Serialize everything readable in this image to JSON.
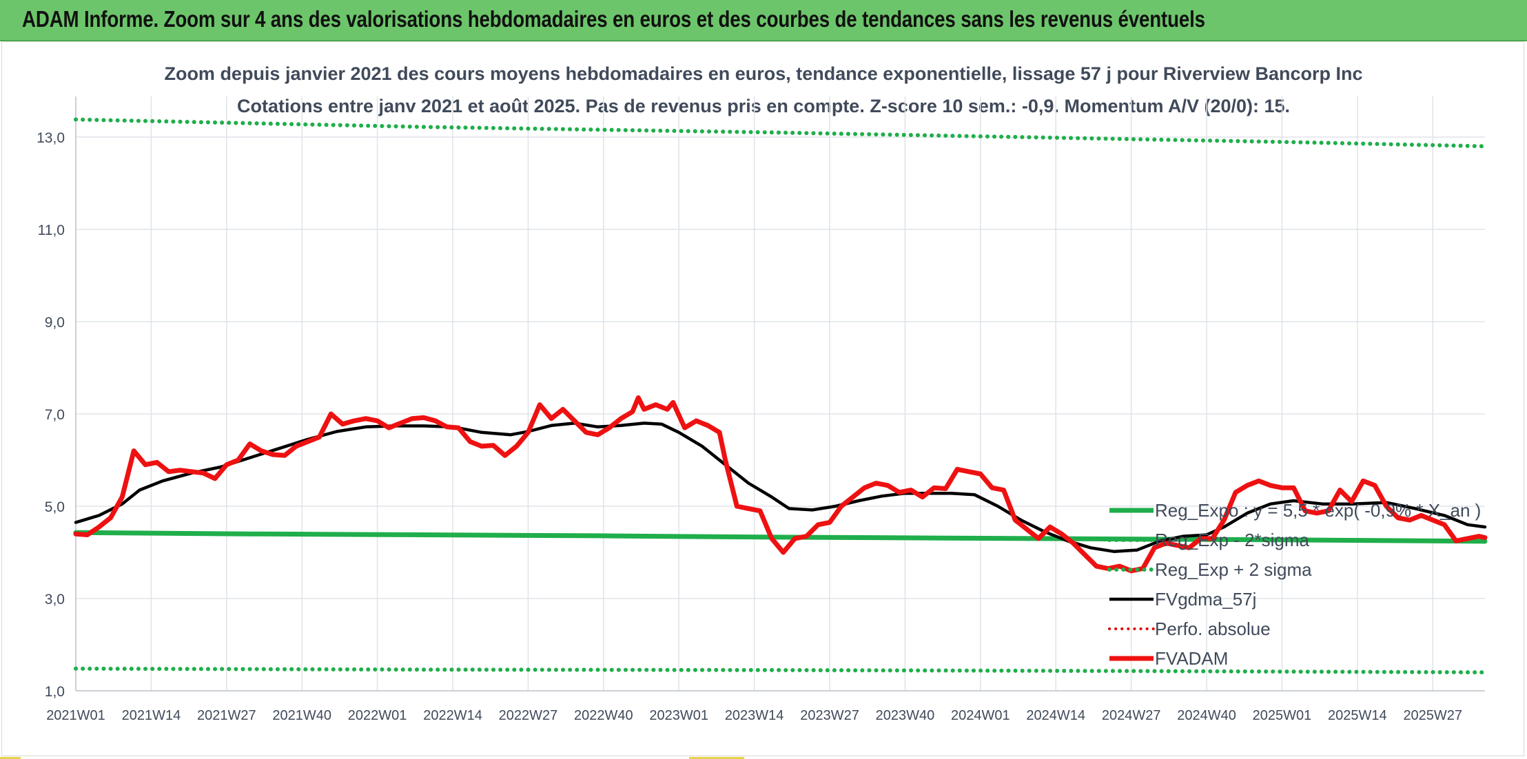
{
  "banner": {
    "title": "ADAM Informe. Zoom sur 4 ans des valorisations hebdomadaires en euros et des courbes de tendances sans les revenus éventuels"
  },
  "colors": {
    "banner_bg": "#6cc56a",
    "reg_expo": "#1fae4b",
    "sigma": "#1fae4b",
    "fvgdma": "#000000",
    "perfo": "#e00000",
    "fvadam": "#ee1111",
    "grid": "#dfe3e8",
    "text": "#404a5a"
  },
  "chart_data": {
    "type": "line",
    "title": "Zoom depuis janvier 2021 des cours moyens hebdomadaires en euros, tendance exponentielle, lissage 57 j pour Riverview Bancorp Inc",
    "subtitle": "Cotations entre janv 2021 et août 2025. Pas de revenus pris en compte. Z-score 10 sem.: -0,9. Momentum A/V (20/0): 15.",
    "xlabel": "",
    "ylabel": "",
    "ylim": [
      1.0,
      14.0
    ],
    "yticks": [
      "1,0",
      "3,0",
      "5,0",
      "7,0",
      "9,0",
      "11,0",
      "13,0"
    ],
    "x_tick_labels": [
      "2021W01",
      "2021W14",
      "2021W27",
      "2021W40",
      "2022W01",
      "2022W14",
      "2022W27",
      "2022W40",
      "2023W01",
      "2023W14",
      "2023W27",
      "2023W40",
      "2024W01",
      "2024W14",
      "2024W27",
      "2024W40",
      "2025W01",
      "2025W14",
      "2025W27"
    ],
    "x_tick_weeks": [
      0,
      13,
      26,
      39,
      52,
      65,
      78,
      91,
      104,
      117,
      130,
      143,
      156,
      169,
      182,
      195,
      208,
      221,
      234
    ],
    "x_range_weeks": [
      0,
      243
    ],
    "grid": true,
    "legend_position": "right-inside",
    "series": [
      {
        "name": "Reg_Expo : y = 5,5 * exp( -0,9% * X_an )",
        "style": "solid-thick",
        "points": [
          [
            0,
            4.43
          ],
          [
            30,
            4.4
          ],
          [
            60,
            4.38
          ],
          [
            90,
            4.36
          ],
          [
            120,
            4.33
          ],
          [
            150,
            4.31
          ],
          [
            180,
            4.29
          ],
          [
            210,
            4.27
          ],
          [
            243,
            4.24
          ]
        ]
      },
      {
        "name": "Reg_Exp - 2*sigma",
        "style": "dotted",
        "points": [
          [
            0,
            1.48
          ],
          [
            60,
            1.46
          ],
          [
            120,
            1.45
          ],
          [
            180,
            1.43
          ],
          [
            243,
            1.4
          ]
        ]
      },
      {
        "name": "Reg_Exp + 2 sigma",
        "style": "dotted",
        "points": [
          [
            0,
            13.38
          ],
          [
            30,
            13.3
          ],
          [
            60,
            13.22
          ],
          [
            90,
            13.16
          ],
          [
            120,
            13.1
          ],
          [
            150,
            13.03
          ],
          [
            180,
            12.96
          ],
          [
            210,
            12.89
          ],
          [
            243,
            12.8
          ]
        ]
      },
      {
        "name": "FVgdma_57j",
        "style": "solid",
        "points": [
          [
            0,
            4.65
          ],
          [
            4,
            4.8
          ],
          [
            8,
            5.05
          ],
          [
            11,
            5.35
          ],
          [
            15,
            5.55
          ],
          [
            20,
            5.72
          ],
          [
            25,
            5.85
          ],
          [
            30,
            6.05
          ],
          [
            35,
            6.25
          ],
          [
            40,
            6.45
          ],
          [
            45,
            6.62
          ],
          [
            50,
            6.72
          ],
          [
            55,
            6.74
          ],
          [
            60,
            6.74
          ],
          [
            65,
            6.72
          ],
          [
            70,
            6.6
          ],
          [
            75,
            6.55
          ],
          [
            78,
            6.62
          ],
          [
            82,
            6.75
          ],
          [
            86,
            6.8
          ],
          [
            90,
            6.72
          ],
          [
            94,
            6.75
          ],
          [
            98,
            6.8
          ],
          [
            101,
            6.78
          ],
          [
            104,
            6.6
          ],
          [
            108,
            6.3
          ],
          [
            112,
            5.9
          ],
          [
            116,
            5.5
          ],
          [
            120,
            5.2
          ],
          [
            123,
            4.95
          ],
          [
            127,
            4.92
          ],
          [
            131,
            5.0
          ],
          [
            135,
            5.12
          ],
          [
            139,
            5.22
          ],
          [
            143,
            5.28
          ],
          [
            147,
            5.28
          ],
          [
            151,
            5.28
          ],
          [
            155,
            5.25
          ],
          [
            159,
            5.0
          ],
          [
            163,
            4.7
          ],
          [
            167,
            4.45
          ],
          [
            171,
            4.25
          ],
          [
            175,
            4.1
          ],
          [
            179,
            4.02
          ],
          [
            183,
            4.05
          ],
          [
            187,
            4.25
          ],
          [
            191,
            4.35
          ],
          [
            195,
            4.38
          ],
          [
            198,
            4.55
          ],
          [
            202,
            4.85
          ],
          [
            206,
            5.05
          ],
          [
            210,
            5.12
          ],
          [
            215,
            5.05
          ],
          [
            220,
            5.05
          ],
          [
            226,
            5.08
          ],
          [
            231,
            4.95
          ],
          [
            236,
            4.8
          ],
          [
            240,
            4.6
          ],
          [
            243,
            4.55
          ]
        ]
      },
      {
        "name": "Perfo. absolue",
        "style": "dotted",
        "points": []
      },
      {
        "name": "FVADAM",
        "style": "solid-thick",
        "points": [
          [
            0,
            4.4
          ],
          [
            2,
            4.38
          ],
          [
            4,
            4.55
          ],
          [
            6,
            4.75
          ],
          [
            8,
            5.2
          ],
          [
            10,
            6.2
          ],
          [
            12,
            5.9
          ],
          [
            14,
            5.95
          ],
          [
            16,
            5.75
          ],
          [
            18,
            5.78
          ],
          [
            20,
            5.75
          ],
          [
            22,
            5.72
          ],
          [
            24,
            5.6
          ],
          [
            26,
            5.9
          ],
          [
            28,
            6.0
          ],
          [
            30,
            6.35
          ],
          [
            32,
            6.2
          ],
          [
            34,
            6.12
          ],
          [
            36,
            6.1
          ],
          [
            38,
            6.3
          ],
          [
            40,
            6.4
          ],
          [
            42,
            6.5
          ],
          [
            44,
            7.0
          ],
          [
            46,
            6.78
          ],
          [
            48,
            6.85
          ],
          [
            50,
            6.9
          ],
          [
            52,
            6.85
          ],
          [
            54,
            6.7
          ],
          [
            56,
            6.8
          ],
          [
            58,
            6.9
          ],
          [
            60,
            6.92
          ],
          [
            62,
            6.85
          ],
          [
            64,
            6.72
          ],
          [
            66,
            6.7
          ],
          [
            68,
            6.4
          ],
          [
            70,
            6.3
          ],
          [
            72,
            6.32
          ],
          [
            74,
            6.1
          ],
          [
            76,
            6.3
          ],
          [
            78,
            6.6
          ],
          [
            80,
            7.2
          ],
          [
            82,
            6.9
          ],
          [
            84,
            7.1
          ],
          [
            86,
            6.85
          ],
          [
            88,
            6.6
          ],
          [
            90,
            6.55
          ],
          [
            92,
            6.7
          ],
          [
            94,
            6.9
          ],
          [
            96,
            7.05
          ],
          [
            97,
            7.35
          ],
          [
            98,
            7.1
          ],
          [
            100,
            7.2
          ],
          [
            102,
            7.1
          ],
          [
            103,
            7.25
          ],
          [
            105,
            6.7
          ],
          [
            107,
            6.85
          ],
          [
            109,
            6.75
          ],
          [
            111,
            6.6
          ],
          [
            112,
            6.0
          ],
          [
            113,
            5.5
          ],
          [
            114,
            5.0
          ],
          [
            116,
            4.95
          ],
          [
            118,
            4.9
          ],
          [
            120,
            4.3
          ],
          [
            122,
            4.0
          ],
          [
            124,
            4.3
          ],
          [
            126,
            4.35
          ],
          [
            128,
            4.6
          ],
          [
            130,
            4.65
          ],
          [
            132,
            5.0
          ],
          [
            134,
            5.2
          ],
          [
            136,
            5.4
          ],
          [
            138,
            5.5
          ],
          [
            140,
            5.45
          ],
          [
            142,
            5.3
          ],
          [
            144,
            5.35
          ],
          [
            146,
            5.2
          ],
          [
            148,
            5.4
          ],
          [
            150,
            5.38
          ],
          [
            152,
            5.8
          ],
          [
            154,
            5.75
          ],
          [
            156,
            5.7
          ],
          [
            158,
            5.4
          ],
          [
            160,
            5.35
          ],
          [
            162,
            4.7
          ],
          [
            164,
            4.5
          ],
          [
            166,
            4.3
          ],
          [
            168,
            4.55
          ],
          [
            170,
            4.4
          ],
          [
            172,
            4.2
          ],
          [
            174,
            3.95
          ],
          [
            176,
            3.7
          ],
          [
            178,
            3.65
          ],
          [
            180,
            3.7
          ],
          [
            182,
            3.6
          ],
          [
            184,
            3.65
          ],
          [
            186,
            4.1
          ],
          [
            188,
            4.2
          ],
          [
            190,
            4.15
          ],
          [
            192,
            4.1
          ],
          [
            194,
            4.3
          ],
          [
            196,
            4.3
          ],
          [
            198,
            4.7
          ],
          [
            200,
            5.3
          ],
          [
            202,
            5.45
          ],
          [
            204,
            5.55
          ],
          [
            206,
            5.45
          ],
          [
            208,
            5.4
          ],
          [
            210,
            5.4
          ],
          [
            212,
            4.9
          ],
          [
            214,
            4.85
          ],
          [
            216,
            4.9
          ],
          [
            218,
            5.35
          ],
          [
            220,
            5.1
          ],
          [
            222,
            5.55
          ],
          [
            224,
            5.45
          ],
          [
            226,
            5.0
          ],
          [
            228,
            4.75
          ],
          [
            230,
            4.7
          ],
          [
            232,
            4.8
          ],
          [
            234,
            4.7
          ],
          [
            236,
            4.6
          ],
          [
            238,
            4.25
          ],
          [
            240,
            4.3
          ],
          [
            242,
            4.35
          ],
          [
            243,
            4.32
          ]
        ]
      }
    ]
  }
}
